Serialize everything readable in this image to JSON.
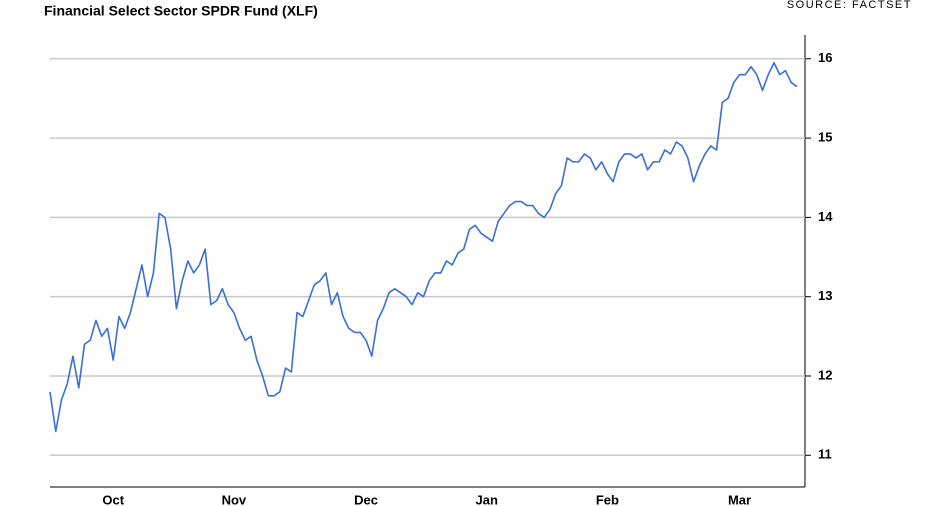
{
  "chart_data": {
    "type": "line",
    "title": "Financial Select Sector SPDR Fund (XLF)",
    "source": "SOURCE: FACTSET",
    "categories": [
      null,
      null,
      null,
      null,
      null,
      null,
      null,
      null,
      null,
      null,
      null,
      "Oct",
      null,
      null,
      null,
      null,
      null,
      null,
      null,
      null,
      null,
      null,
      null,
      null,
      null,
      null,
      null,
      null,
      null,
      null,
      null,
      null,
      "Nov",
      null,
      null,
      null,
      null,
      null,
      null,
      null,
      null,
      null,
      null,
      null,
      null,
      null,
      null,
      null,
      null,
      null,
      null,
      null,
      null,
      null,
      null,
      "Dec",
      null,
      null,
      null,
      null,
      null,
      null,
      null,
      null,
      null,
      null,
      null,
      null,
      null,
      null,
      null,
      null,
      null,
      null,
      null,
      null,
      "Jan",
      null,
      null,
      null,
      null,
      null,
      null,
      null,
      null,
      null,
      null,
      null,
      null,
      null,
      null,
      null,
      null,
      null,
      null,
      null,
      null,
      "Feb",
      null,
      null,
      null,
      null,
      null,
      null,
      null,
      null,
      null,
      null,
      null,
      null,
      null,
      null,
      null,
      null,
      null,
      null,
      null,
      null,
      null,
      null,
      "Mar",
      null,
      null,
      null,
      null,
      null,
      null,
      null,
      null,
      null,
      null
    ],
    "values": [
      11.8,
      11.3,
      11.7,
      11.9,
      12.25,
      11.85,
      12.4,
      12.45,
      12.7,
      12.5,
      12.6,
      12.2,
      12.75,
      12.6,
      12.8,
      13.1,
      13.4,
      13.0,
      13.3,
      14.05,
      14.0,
      13.6,
      12.85,
      13.2,
      13.45,
      13.3,
      13.4,
      13.6,
      12.9,
      12.95,
      13.1,
      12.9,
      12.8,
      12.6,
      12.45,
      12.5,
      12.2,
      12.0,
      11.75,
      11.75,
      11.8,
      12.1,
      12.05,
      12.8,
      12.75,
      12.95,
      13.15,
      13.2,
      13.3,
      12.9,
      13.05,
      12.75,
      12.6,
      12.55,
      12.55,
      12.45,
      12.25,
      12.7,
      12.85,
      13.05,
      13.1,
      13.05,
      13.0,
      12.9,
      13.05,
      13.0,
      13.2,
      13.3,
      13.3,
      13.45,
      13.4,
      13.55,
      13.6,
      13.85,
      13.9,
      13.8,
      13.75,
      13.7,
      13.95,
      14.05,
      14.15,
      14.2,
      14.2,
      14.15,
      14.15,
      14.05,
      14.0,
      14.1,
      14.3,
      14.4,
      14.75,
      14.7,
      14.7,
      14.8,
      14.75,
      14.6,
      14.7,
      14.55,
      14.45,
      14.7,
      14.8,
      14.8,
      14.75,
      14.8,
      14.6,
      14.7,
      14.7,
      14.85,
      14.8,
      14.95,
      14.9,
      14.75,
      14.45,
      14.65,
      14.8,
      14.9,
      14.85,
      15.45,
      15.5,
      15.7,
      15.8,
      15.8,
      15.9,
      15.8,
      15.6,
      15.8,
      15.95,
      15.8,
      15.85,
      15.7,
      15.65
    ],
    "color": "#3a6fd8",
    "ylim": [
      10.6,
      16.3
    ],
    "yticks": [
      11,
      12,
      13,
      14,
      15,
      16
    ],
    "grid": true
  }
}
